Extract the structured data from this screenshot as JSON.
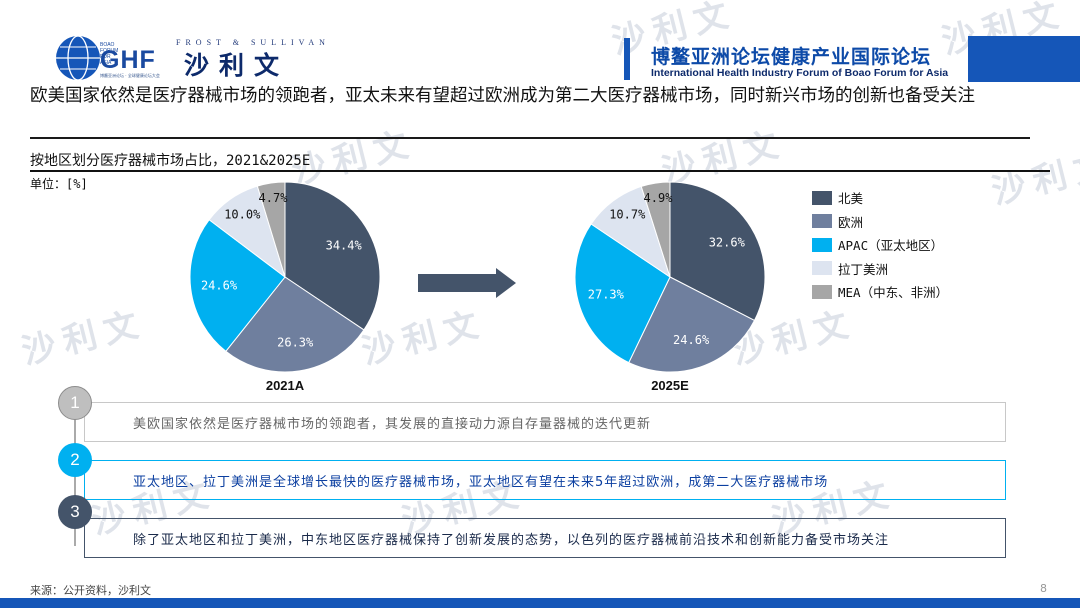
{
  "header": {
    "ghf_small": "BOAO FORUM FOR ASIA",
    "ghf_logo": "GHF",
    "ghf_sub": "博鳌亚洲论坛 · 全球健康论坛大会",
    "fs_en": "FROST & SULLIVAN",
    "fs_cn": "沙利文",
    "forum_cn": "博鳌亚洲论坛健康产业国际论坛",
    "forum_en": "International Health Industry Forum of Boao Forum for Asia"
  },
  "headline": "欧美国家依然是医疗器械市场的领跑者，亚太未来有望超过欧洲成为第二大医疗器械市场，同时新兴市场的创新也备受关注",
  "subtitle": "按地区划分医疗器械市场占比，2021&2025E",
  "unit": "单位：[%]",
  "colors": {
    "na": "#44546a",
    "eu": "#6f7f9e",
    "apac": "#00b0f0",
    "latam": "#dde4f0",
    "mea": "#a6a6a6",
    "accent": "#1556b8"
  },
  "chart_data": [
    {
      "type": "pie",
      "title": "2021A",
      "categories": [
        "北美",
        "欧洲",
        "APAC（亚太地区）",
        "拉丁美洲",
        "MEA（中东、非洲）"
      ],
      "values": [
        34.4,
        26.3,
        24.6,
        10.0,
        4.7
      ],
      "labels": [
        "34.4%",
        "26.3%",
        "24.6%",
        "10.0%",
        "4.7%"
      ]
    },
    {
      "type": "pie",
      "title": "2025E",
      "categories": [
        "北美",
        "欧洲",
        "APAC（亚太地区）",
        "拉丁美洲",
        "MEA（中东、非洲）"
      ],
      "values": [
        32.6,
        24.6,
        27.3,
        10.7,
        4.9
      ],
      "labels": [
        "32.6%",
        "24.6%",
        "27.3%",
        "10.7%",
        "4.9%"
      ]
    }
  ],
  "legend": {
    "items": [
      {
        "label": "北美",
        "color": "#44546a"
      },
      {
        "label": "欧洲",
        "color": "#6f7f9e"
      },
      {
        "label": "APAC（亚太地区）",
        "color": "#00b0f0"
      },
      {
        "label": "拉丁美洲",
        "color": "#dde4f0"
      },
      {
        "label": "MEA（中东、非洲）",
        "color": "#a6a6a6"
      }
    ]
  },
  "points": [
    {
      "num": "1",
      "text": "美欧国家依然是医疗器械市场的领跑者，其发展的直接动力源自存量器械的迭代更新"
    },
    {
      "num": "2",
      "text": "亚太地区、拉丁美洲是全球增长最快的医疗器械市场，亚太地区有望在未来5年超过欧洲，成第二大医疗器械市场"
    },
    {
      "num": "3",
      "text": "除了亚太地区和拉丁美洲，中东地区医疗器械保持了创新发展的态势，以色列的医疗器械前沿技术和创新能力备受市场关注"
    }
  ],
  "source": "来源：公开资料，沙利文",
  "page_number": "8"
}
